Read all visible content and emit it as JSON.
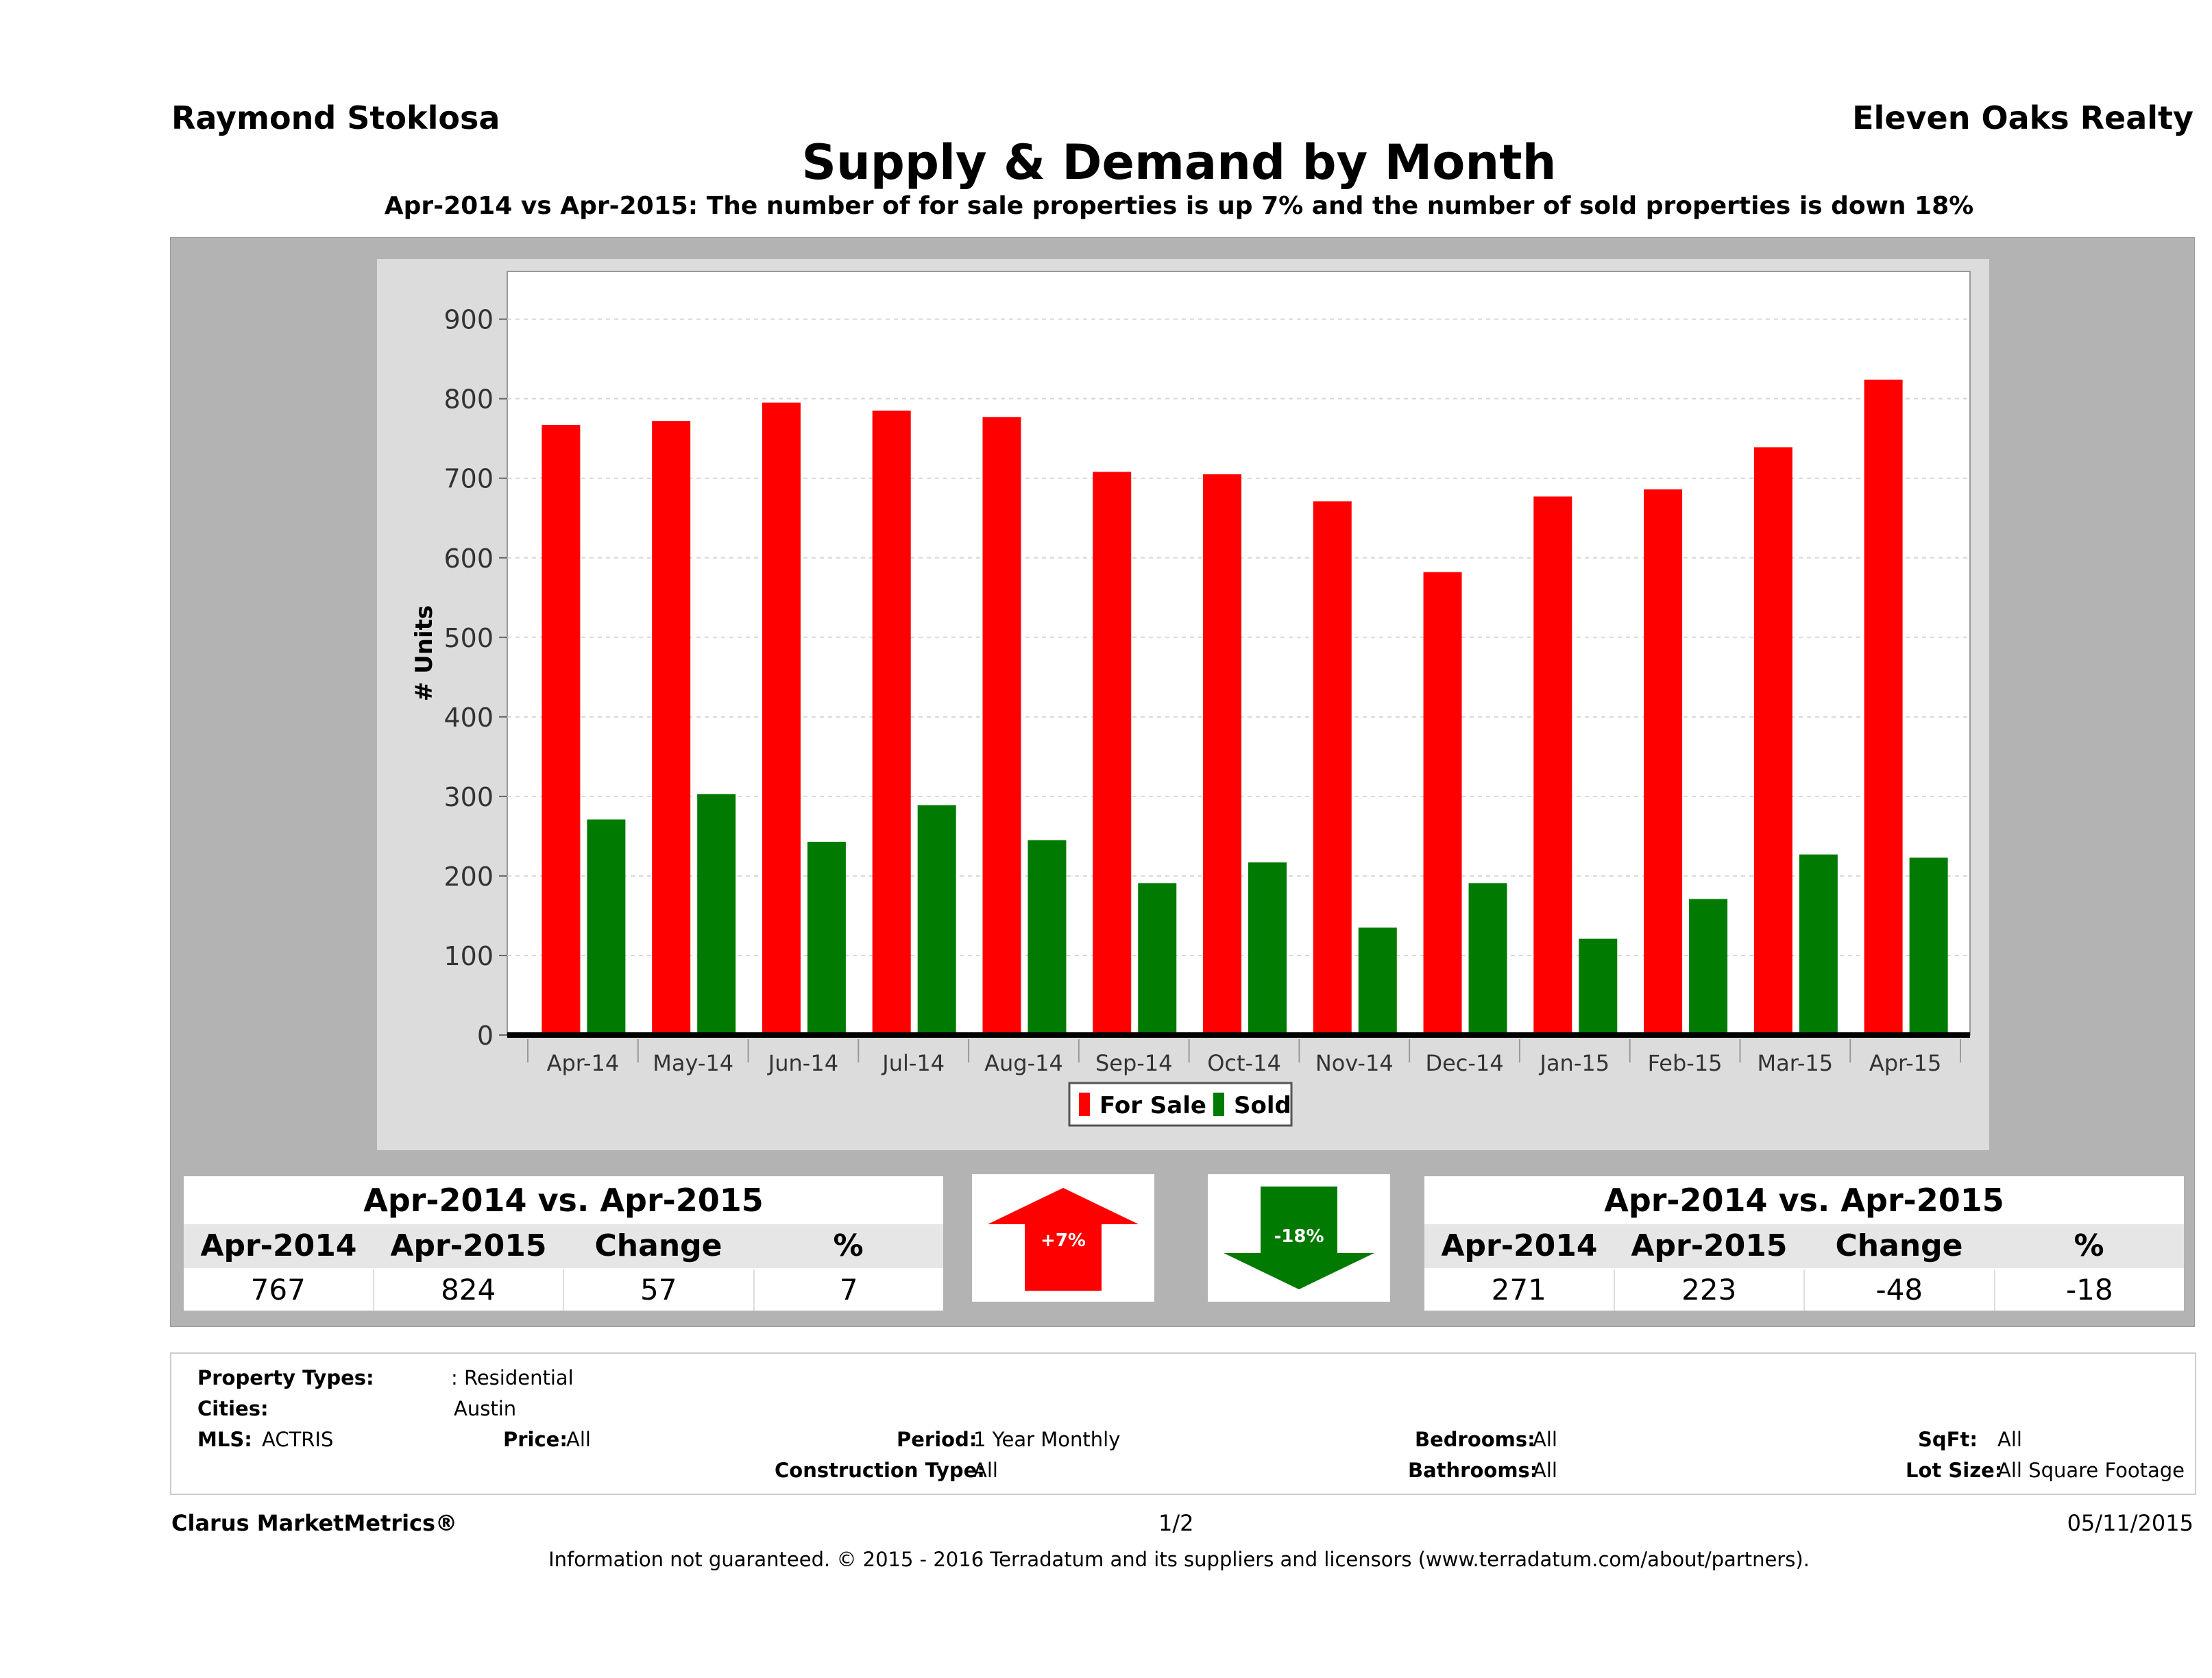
{
  "header": {
    "agent": "Raymond Stoklosa",
    "brokerage": "Eleven Oaks Realty",
    "title": "Supply & Demand by Month",
    "subtitle": "Apr-2014 vs Apr-2015: The number of for sale properties is up 7% and the number of sold properties is down 18%"
  },
  "colors": {
    "for_sale": "#ff0000",
    "sold": "#007a00",
    "panel": "#b3b3b3"
  },
  "chart_data": {
    "type": "bar",
    "categories": [
      "Apr-14",
      "May-14",
      "Jun-14",
      "Jul-14",
      "Aug-14",
      "Sep-14",
      "Oct-14",
      "Nov-14",
      "Dec-14",
      "Jan-15",
      "Feb-15",
      "Mar-15",
      "Apr-15"
    ],
    "series": [
      {
        "name": "For Sale",
        "color": "#ff0000",
        "values": [
          767,
          772,
          795,
          785,
          777,
          708,
          705,
          671,
          582,
          677,
          686,
          739,
          824
        ]
      },
      {
        "name": "Sold",
        "color": "#007a00",
        "values": [
          271,
          303,
          243,
          289,
          245,
          191,
          217,
          135,
          191,
          121,
          171,
          227,
          223
        ]
      }
    ],
    "xlabel": "",
    "ylabel": "# Units",
    "ylim": [
      0,
      960
    ],
    "yticks": [
      0,
      100,
      200,
      300,
      400,
      500,
      600,
      700,
      800,
      900
    ],
    "grid": true,
    "legend": "bottom-center"
  },
  "for_sale_table": {
    "title": "Apr-2014 vs. Apr-2015",
    "headers": [
      "Apr-2014",
      "Apr-2015",
      "Change",
      "%"
    ],
    "values": [
      "767",
      "824",
      "57",
      "7"
    ]
  },
  "sold_table": {
    "title": "Apr-2014 vs. Apr-2015",
    "headers": [
      "Apr-2014",
      "Apr-2015",
      "Change",
      "%"
    ],
    "values": [
      "271",
      "223",
      "-48",
      "-18"
    ]
  },
  "indicators": {
    "for_sale_change": "+7%",
    "sold_change": "-18%"
  },
  "filters": {
    "property_types_label": "Property Types:",
    "property_types_value": ": Residential",
    "cities_label": "Cities:",
    "cities_value": "Austin",
    "mls_label": "MLS:",
    "mls_value": "ACTRIS",
    "price_label": "Price:",
    "price_value": "All",
    "period_label": "Period:",
    "period_value": "1 Year Monthly",
    "construction_label": "Construction Type:",
    "construction_value": "All",
    "bedrooms_label": "Bedrooms:",
    "bedrooms_value": "All",
    "bathrooms_label": "Bathrooms:",
    "bathrooms_value": "All",
    "sqft_label": "SqFt:",
    "sqft_value": "All",
    "lot_label": "Lot Size:",
    "lot_value": "All Square Footage"
  },
  "footer": {
    "product": "Clarus MarketMetrics®",
    "page": "1/2",
    "date": "05/11/2015",
    "disclaimer": "Information not guaranteed. © 2015 - 2016 Terradatum and its suppliers and licensors (www.terradatum.com/about/partners)."
  }
}
